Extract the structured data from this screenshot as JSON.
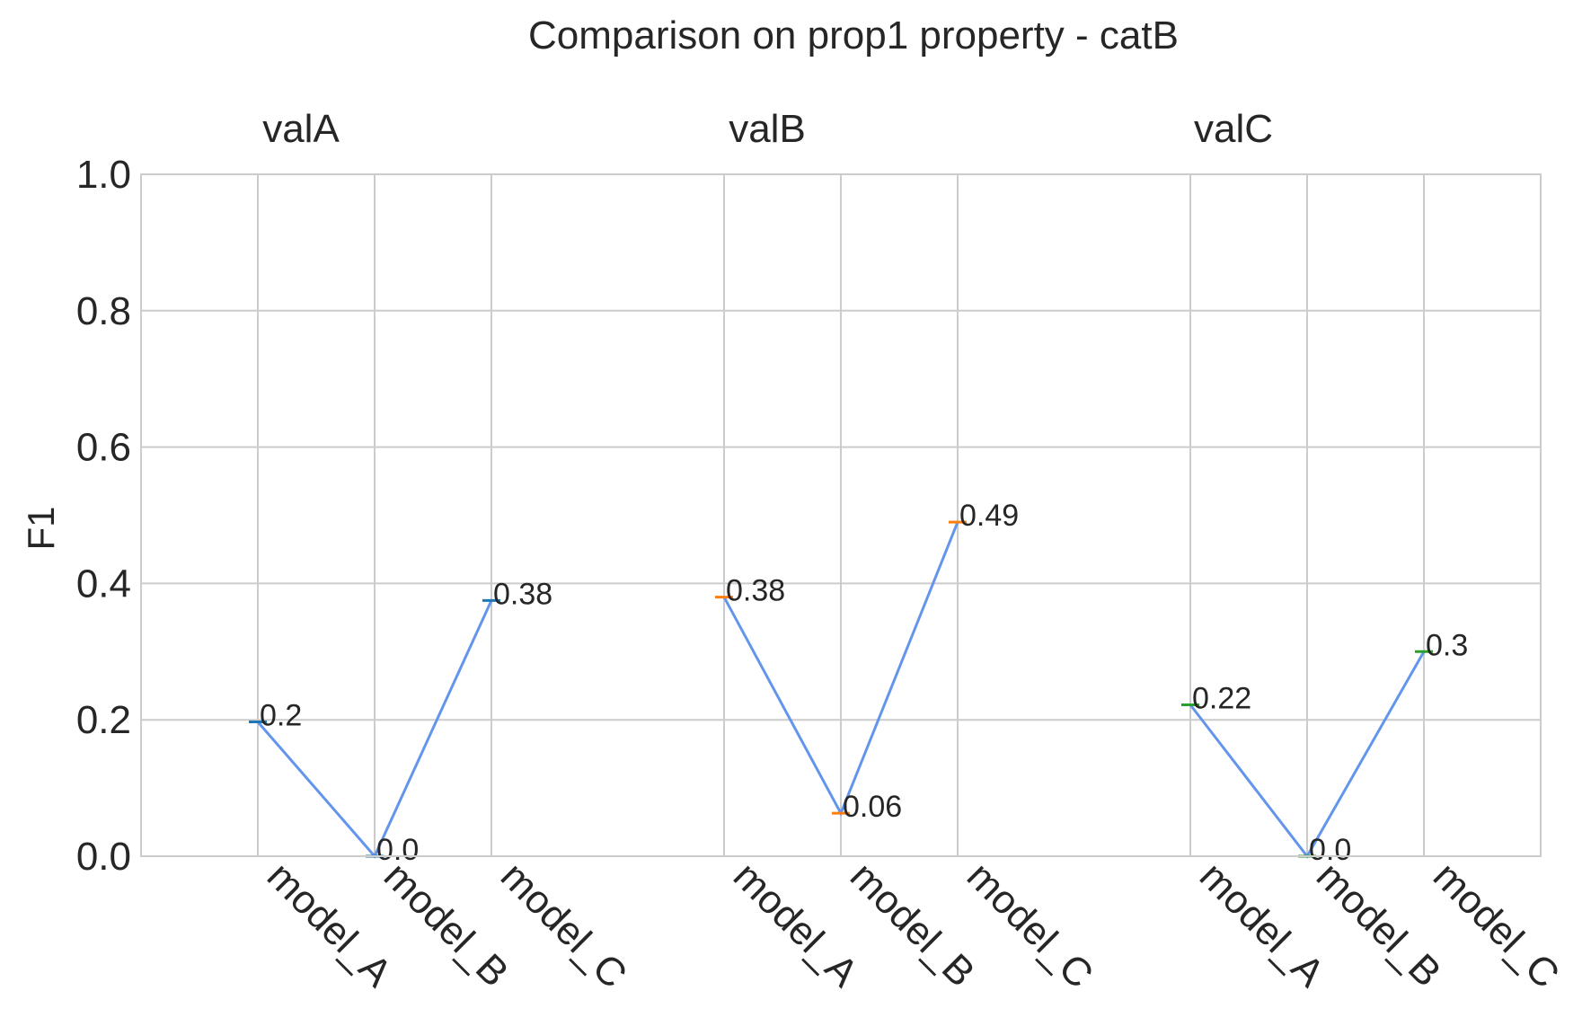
{
  "chart_data": {
    "type": "line",
    "title": "Comparison on prop1 property - catB",
    "xlabel": "",
    "ylabel": "F1",
    "ylim": [
      0,
      1
    ],
    "yticks": [
      "0.0",
      "0.2",
      "0.4",
      "0.6",
      "0.8",
      "1.0"
    ],
    "grid": true,
    "line_color": "#6495ED",
    "categories": [
      "model_A",
      "model_B",
      "model_C"
    ],
    "panels": [
      {
        "name": "valA",
        "marker_color": "#1f77b4",
        "values": [
          0.197,
          0.0,
          0.375
        ],
        "labels": [
          "0.2",
          "0.0",
          "0.38"
        ]
      },
      {
        "name": "valB",
        "marker_color": "#ff7f0e",
        "values": [
          0.38,
          0.063,
          0.49
        ],
        "labels": [
          "0.38",
          "0.06",
          "0.49"
        ]
      },
      {
        "name": "valC",
        "marker_color": "#2ca02c",
        "values": [
          0.222,
          0.0,
          0.3
        ],
        "labels": [
          "0.22",
          "0.0",
          "0.3"
        ]
      }
    ]
  }
}
